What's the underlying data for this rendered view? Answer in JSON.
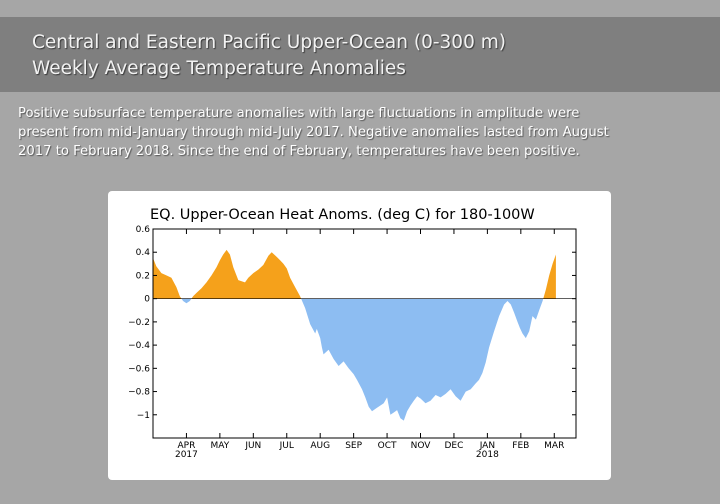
{
  "slide": {
    "title_line1": "Central and Eastern Pacific Upper-Ocean (0-300 m)",
    "title_line2": "Weekly Average Temperature Anomalies",
    "description": [
      "Positive subsurface temperature anomalies with large fluctuations in amplitude were",
      "present from mid-January through mid-July 2017.  Negative anomalies lasted from August",
      "2017 to February 2018.  Since the end of February, temperatures have been positive."
    ]
  },
  "colors": {
    "positive": "#f5a11b",
    "negative": "#8dbdf2"
  },
  "chart_data": {
    "type": "area",
    "title": "EQ. Upper-Ocean Heat Anoms. (deg C) for 180-100W",
    "ylim": [
      -1.2,
      0.6
    ],
    "yticks": [
      0.6,
      0.4,
      0.2,
      0,
      -0.2,
      -0.4,
      -0.6,
      -0.8,
      -1
    ],
    "ytick_labels": [
      "0.6",
      "0.4",
      "0.2",
      "0",
      "−0.2",
      "−0.4",
      "−0.6",
      "−0.8",
      "−1"
    ],
    "xlim": [
      0,
      12.65
    ],
    "month_labels": [
      "APR",
      "MAY",
      "JUN",
      "JUL",
      "AUG",
      "SEP",
      "OCT",
      "NOV",
      "DEC",
      "JAN",
      "FEB",
      "MAR"
    ],
    "month_positions": [
      1,
      2,
      3,
      4,
      5,
      6,
      7,
      8,
      9,
      10,
      11,
      12
    ],
    "year_labels": [
      {
        "text": "2017",
        "x": 1
      },
      {
        "text": "2018",
        "x": 10
      }
    ],
    "grid": false,
    "series": [
      {
        "x": [
          0,
          0.1,
          0.25,
          0.4,
          0.55,
          0.7,
          0.8,
          0.9,
          1.0,
          1.1,
          1.2,
          1.3,
          1.45,
          1.6,
          1.75,
          1.9,
          2.0,
          2.1,
          2.2,
          2.3,
          2.4,
          2.55,
          2.65,
          2.75,
          2.85,
          3.0,
          3.15,
          3.3,
          3.45,
          3.55,
          3.7,
          3.8,
          3.9,
          4.0,
          4.1,
          4.25,
          4.4,
          4.55,
          4.7,
          4.85,
          4.9,
          5.0,
          5.05,
          5.1,
          5.25,
          5.4,
          5.55,
          5.7,
          5.85,
          6.0,
          6.1,
          6.25,
          6.35,
          6.45,
          6.55,
          6.7,
          6.8,
          6.9,
          7.0,
          7.1,
          7.2,
          7.3,
          7.4,
          7.5,
          7.6,
          7.7,
          7.8,
          7.9,
          8.0,
          8.15,
          8.3,
          8.45,
          8.6,
          8.75,
          8.9,
          9.05,
          9.2,
          9.35,
          9.5,
          9.65,
          9.75,
          9.85,
          9.95,
          10.05,
          10.2,
          10.35,
          10.5,
          10.6,
          10.7,
          10.8,
          10.9,
          10.97,
          11.05,
          11.15,
          11.25,
          11.35,
          11.45,
          11.55,
          11.65,
          11.75,
          11.85,
          11.95,
          12.05
        ],
        "y": [
          0.35,
          0.28,
          0.22,
          0.2,
          0.18,
          0.1,
          0.02,
          -0.02,
          -0.04,
          -0.02,
          0.02,
          0.05,
          0.09,
          0.14,
          0.2,
          0.27,
          0.33,
          0.38,
          0.42,
          0.38,
          0.27,
          0.16,
          0.15,
          0.14,
          0.18,
          0.22,
          0.25,
          0.29,
          0.37,
          0.4,
          0.36,
          0.33,
          0.3,
          0.26,
          0.18,
          0.1,
          0.02,
          -0.08,
          -0.22,
          -0.3,
          -0.26,
          -0.34,
          -0.42,
          -0.48,
          -0.44,
          -0.52,
          -0.58,
          -0.54,
          -0.6,
          -0.65,
          -0.7,
          -0.78,
          -0.85,
          -0.93,
          -0.97,
          -0.94,
          -0.92,
          -0.9,
          -0.85,
          -1.0,
          -0.98,
          -0.96,
          -1.03,
          -1.05,
          -0.97,
          -0.92,
          -0.88,
          -0.84,
          -0.86,
          -0.9,
          -0.88,
          -0.83,
          -0.85,
          -0.82,
          -0.78,
          -0.84,
          -0.88,
          -0.8,
          -0.78,
          -0.73,
          -0.7,
          -0.64,
          -0.55,
          -0.42,
          -0.28,
          -0.15,
          -0.05,
          -0.02,
          -0.05,
          -0.12,
          -0.2,
          -0.25,
          -0.3,
          -0.34,
          -0.28,
          -0.15,
          -0.18,
          -0.1,
          -0.02,
          0.08,
          0.2,
          0.3,
          0.38
        ]
      }
    ]
  }
}
